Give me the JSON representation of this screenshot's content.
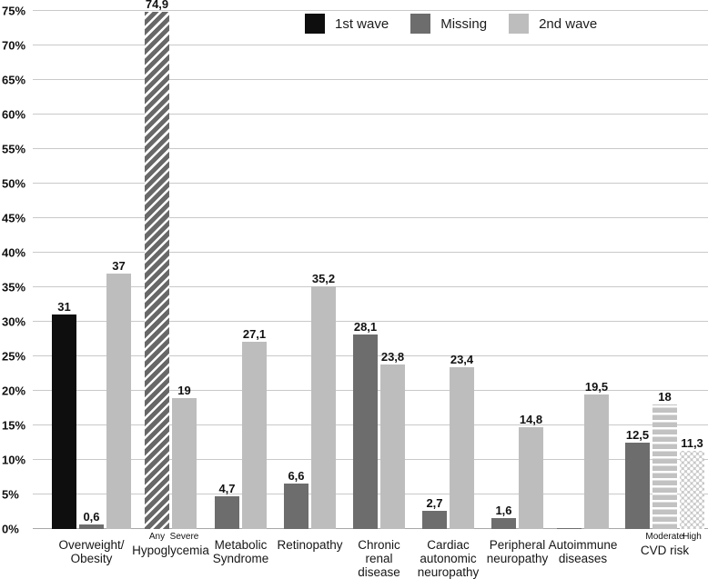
{
  "chart_data": {
    "type": "bar",
    "title": "",
    "xlabel": "",
    "ylabel": "",
    "ylim": [
      0,
      75
    ],
    "ytick_step": 5,
    "grid": true,
    "legend_position": "top-center",
    "ytick_labels": [
      "0%",
      "5%",
      "10%",
      "15%",
      "20%",
      "25%",
      "30%",
      "35%",
      "40%",
      "45%",
      "50%",
      "55%",
      "60%",
      "65%",
      "70%",
      "75%"
    ],
    "legend": [
      {
        "label": "1st wave",
        "style": "black",
        "color": "#0e0e0e"
      },
      {
        "label": "Missing",
        "style": "darkgray",
        "color": "#6d6d6d"
      },
      {
        "label": "2nd wave",
        "style": "lightgray",
        "color": "#bdbdbd"
      }
    ],
    "colors": {
      "first_wave": "#0e0e0e",
      "missing": "#6d6d6d",
      "second_wave": "#bdbdbd",
      "gridline": "#c9c9c9"
    },
    "groups": [
      {
        "name": [
          "Overweight/",
          "Obesity"
        ],
        "bars": [
          {
            "value": 31,
            "label": "31",
            "style": "black"
          },
          {
            "value": 0.6,
            "label": "0,6",
            "style": "darkgray"
          },
          {
            "value": 37,
            "label": "37",
            "style": "lightgray"
          }
        ]
      },
      {
        "name": [
          "Hypoglycemia"
        ],
        "bars": [
          {
            "sublabel": "Any",
            "value": 74.9,
            "label": "74,9",
            "style": "diagonal-hatch"
          },
          {
            "sublabel": "Severe",
            "value": 19,
            "label": "19",
            "style": "lightgray"
          }
        ]
      },
      {
        "name": [
          "Metabolic",
          "Syndrome"
        ],
        "bars": [
          {
            "value": 4.7,
            "label": "4,7",
            "style": "darkgray"
          },
          {
            "value": 27.1,
            "label": "27,1",
            "style": "lightgray"
          }
        ]
      },
      {
        "name": [
          "Retinopathy"
        ],
        "bars": [
          {
            "value": 6.6,
            "label": "6,6",
            "style": "darkgray"
          },
          {
            "value": 35.2,
            "label": "35,2",
            "style": "lightgray"
          }
        ]
      },
      {
        "name": [
          "Chronic",
          "renal",
          "disease"
        ],
        "bars": [
          {
            "value": 28.1,
            "label": "28,1",
            "style": "darkgray"
          },
          {
            "value": 23.8,
            "label": "23,8",
            "style": "lightgray"
          }
        ]
      },
      {
        "name": [
          "Cardiac",
          "autonomic",
          "neuropathy"
        ],
        "bars": [
          {
            "value": 2.7,
            "label": "2,7",
            "style": "darkgray"
          },
          {
            "value": 23.4,
            "label": "23,4",
            "style": "lightgray"
          }
        ]
      },
      {
        "name": [
          "Peripheral",
          "neuropathy"
        ],
        "bars": [
          {
            "value": 1.6,
            "label": "1,6",
            "style": "darkgray"
          },
          {
            "value": 14.8,
            "label": "14,8",
            "style": "lightgray"
          }
        ]
      },
      {
        "name": [
          "Autoimmune",
          "diseases"
        ],
        "bars": [
          {
            "value": 0.2,
            "label": "",
            "style": "darkgray"
          },
          {
            "value": 19.5,
            "label": "19,5",
            "style": "lightgray"
          }
        ]
      },
      {
        "name": [
          "CVD risk"
        ],
        "bars": [
          {
            "value": 12.5,
            "label": "12,5",
            "style": "darkgray"
          },
          {
            "sublabel": "Moderate",
            "value": 18,
            "label": "18",
            "style": "horizontal-stripes"
          },
          {
            "sublabel": "High",
            "value": 11.3,
            "label": "11,3",
            "style": "dots"
          }
        ]
      }
    ]
  }
}
